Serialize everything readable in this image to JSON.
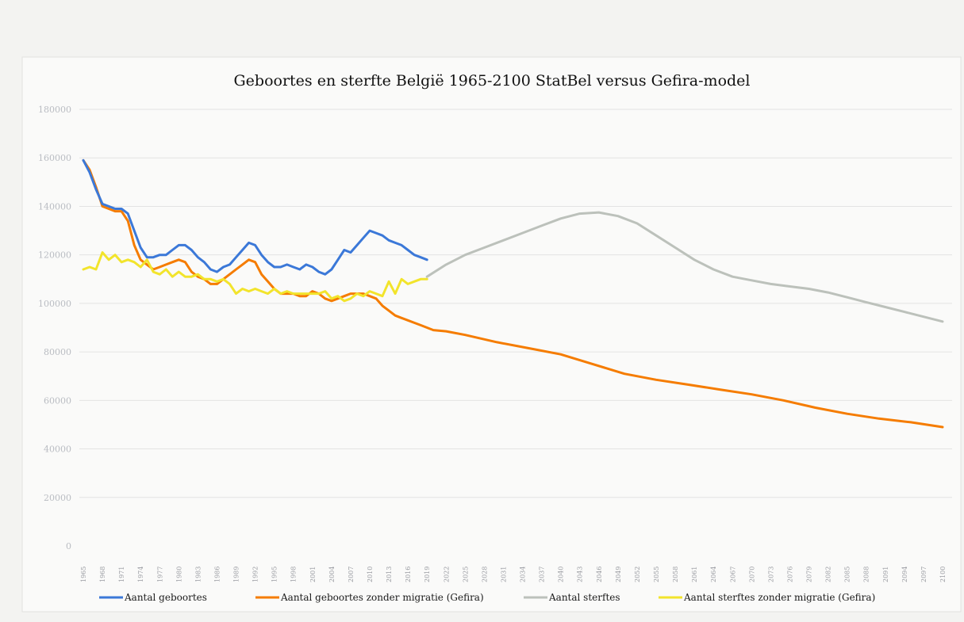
{
  "chart_data": {
    "type": "line",
    "title": "Geboortes en sterfte België 1965-2100 StatBel versus Gefira-model",
    "xlabel": "",
    "ylabel": "",
    "xlim": [
      1965,
      2100
    ],
    "ylim": [
      0,
      180000
    ],
    "yticks": [
      0,
      20000,
      40000,
      60000,
      80000,
      100000,
      120000,
      140000,
      160000,
      180000
    ],
    "ytick_labels": [
      "0",
      "20000",
      "40000",
      "60000",
      "80000",
      "100000",
      "120000",
      "140000",
      "160000",
      "180000"
    ],
    "xtick_labels": [
      "1965",
      "1968",
      "1971",
      "1974",
      "1977",
      "1980",
      "1983",
      "1986",
      "1989",
      "1992",
      "1995",
      "1998",
      "2001",
      "2004",
      "2007",
      "2010",
      "2013",
      "2016",
      "2019",
      "2022",
      "2025",
      "2028",
      "2031",
      "2034",
      "2037",
      "2040",
      "2043",
      "2046",
      "2049",
      "2052",
      "2055",
      "2058",
      "2061",
      "2064",
      "2067",
      "2070",
      "2073",
      "2076",
      "2079",
      "2082",
      "2085",
      "2088",
      "2091",
      "2094",
      "2097",
      "2100"
    ],
    "grid": true,
    "legend_position": "bottom",
    "series": [
      {
        "name": "Aantal geboortes",
        "color": "#3b78d8",
        "x": [
          1965,
          1966,
          1967,
          1968,
          1969,
          1970,
          1971,
          1972,
          1973,
          1974,
          1975,
          1976,
          1977,
          1978,
          1979,
          1980,
          1981,
          1982,
          1983,
          1984,
          1985,
          1986,
          1987,
          1988,
          1989,
          1990,
          1991,
          1992,
          1993,
          1994,
          1995,
          1996,
          1997,
          1998,
          1999,
          2000,
          2001,
          2002,
          2003,
          2004,
          2005,
          2006,
          2007,
          2008,
          2009,
          2010,
          2011,
          2012,
          2013,
          2014,
          2015,
          2016,
          2017,
          2018,
          2019
        ],
        "y": [
          159000,
          154000,
          147000,
          141000,
          140000,
          139000,
          139000,
          137000,
          130000,
          123000,
          119000,
          119000,
          120000,
          120000,
          122000,
          124000,
          124000,
          122000,
          119000,
          117000,
          114000,
          113000,
          115000,
          116000,
          119000,
          122000,
          125000,
          124000,
          120000,
          117000,
          115000,
          115000,
          116000,
          115000,
          114000,
          116000,
          115000,
          113000,
          112000,
          114000,
          118000,
          122000,
          121000,
          124000,
          127000,
          130000,
          129000,
          128000,
          126000,
          125000,
          124000,
          122000,
          120000,
          119000,
          118000
        ]
      },
      {
        "name": "Aantal geboortes zonder migratie (Gefira)",
        "color": "#f57c00",
        "x": [
          1965,
          1966,
          1967,
          1968,
          1969,
          1970,
          1971,
          1972,
          1973,
          1974,
          1975,
          1976,
          1977,
          1978,
          1979,
          1980,
          1981,
          1982,
          1983,
          1984,
          1985,
          1986,
          1987,
          1988,
          1989,
          1990,
          1991,
          1992,
          1993,
          1994,
          1995,
          1996,
          1997,
          1998,
          1999,
          2000,
          2001,
          2002,
          2003,
          2004,
          2005,
          2006,
          2007,
          2008,
          2009,
          2010,
          2011,
          2012,
          2013,
          2014,
          2015,
          2016,
          2017,
          2018,
          2019,
          2020,
          2022,
          2025,
          2030,
          2035,
          2040,
          2045,
          2050,
          2055,
          2060,
          2065,
          2070,
          2075,
          2080,
          2085,
          2090,
          2095,
          2100
        ],
        "y": [
          159000,
          155000,
          148000,
          140000,
          139000,
          138000,
          138000,
          134000,
          124000,
          118000,
          116000,
          114000,
          115000,
          116000,
          117000,
          118000,
          117000,
          113000,
          111000,
          110000,
          108000,
          108000,
          110000,
          112000,
          114000,
          116000,
          118000,
          117000,
          112000,
          109000,
          106000,
          104000,
          104000,
          104000,
          103000,
          103000,
          105000,
          104000,
          102000,
          101000,
          102000,
          103000,
          104000,
          104000,
          104000,
          103000,
          102000,
          99000,
          97000,
          95000,
          94000,
          93000,
          92000,
          91000,
          90000,
          89000,
          88500,
          87000,
          84000,
          81500,
          79000,
          75000,
          71000,
          68500,
          66500,
          64500,
          62500,
          60000,
          57000,
          54500,
          52500,
          51000,
          49000
        ]
      },
      {
        "name": "Aantal sterftes",
        "color": "#bcc1bb",
        "x": [
          2019,
          2022,
          2025,
          2028,
          2031,
          2034,
          2037,
          2040,
          2043,
          2046,
          2049,
          2052,
          2055,
          2058,
          2061,
          2064,
          2067,
          2070,
          2073,
          2076,
          2079,
          2082,
          2085,
          2088,
          2091,
          2094,
          2097,
          2100
        ],
        "y": [
          111000,
          116000,
          120000,
          123000,
          126000,
          129000,
          132000,
          135000,
          137000,
          137500,
          136000,
          133000,
          128000,
          123000,
          118000,
          114000,
          111000,
          109500,
          108000,
          107000,
          106000,
          104500,
          102500,
          100500,
          98500,
          96500,
          94500,
          92500
        ]
      },
      {
        "name": "Aantal sterftes zonder migratie (Gefira)",
        "color": "#f2e42c",
        "x": [
          1965,
          1966,
          1967,
          1968,
          1969,
          1970,
          1971,
          1972,
          1973,
          1974,
          1975,
          1976,
          1977,
          1978,
          1979,
          1980,
          1981,
          1982,
          1983,
          1984,
          1985,
          1986,
          1987,
          1988,
          1989,
          1990,
          1991,
          1992,
          1993,
          1994,
          1995,
          1996,
          1997,
          1998,
          1999,
          2000,
          2001,
          2002,
          2003,
          2004,
          2005,
          2006,
          2007,
          2008,
          2009,
          2010,
          2011,
          2012,
          2013,
          2014,
          2015,
          2016,
          2017,
          2018,
          2019
        ],
        "y": [
          114000,
          115000,
          114000,
          121000,
          118000,
          120000,
          117000,
          118000,
          117000,
          115000,
          118000,
          113000,
          112000,
          114000,
          111000,
          113000,
          111000,
          111000,
          112000,
          110000,
          110000,
          109000,
          110000,
          108000,
          104000,
          106000,
          105000,
          106000,
          105000,
          104000,
          106000,
          104000,
          105000,
          104000,
          104000,
          104000,
          104000,
          104000,
          105000,
          102000,
          103000,
          101000,
          102000,
          104000,
          103000,
          105000,
          104000,
          103000,
          109000,
          104000,
          110000,
          108000,
          109000,
          110000,
          110000
        ]
      }
    ]
  }
}
